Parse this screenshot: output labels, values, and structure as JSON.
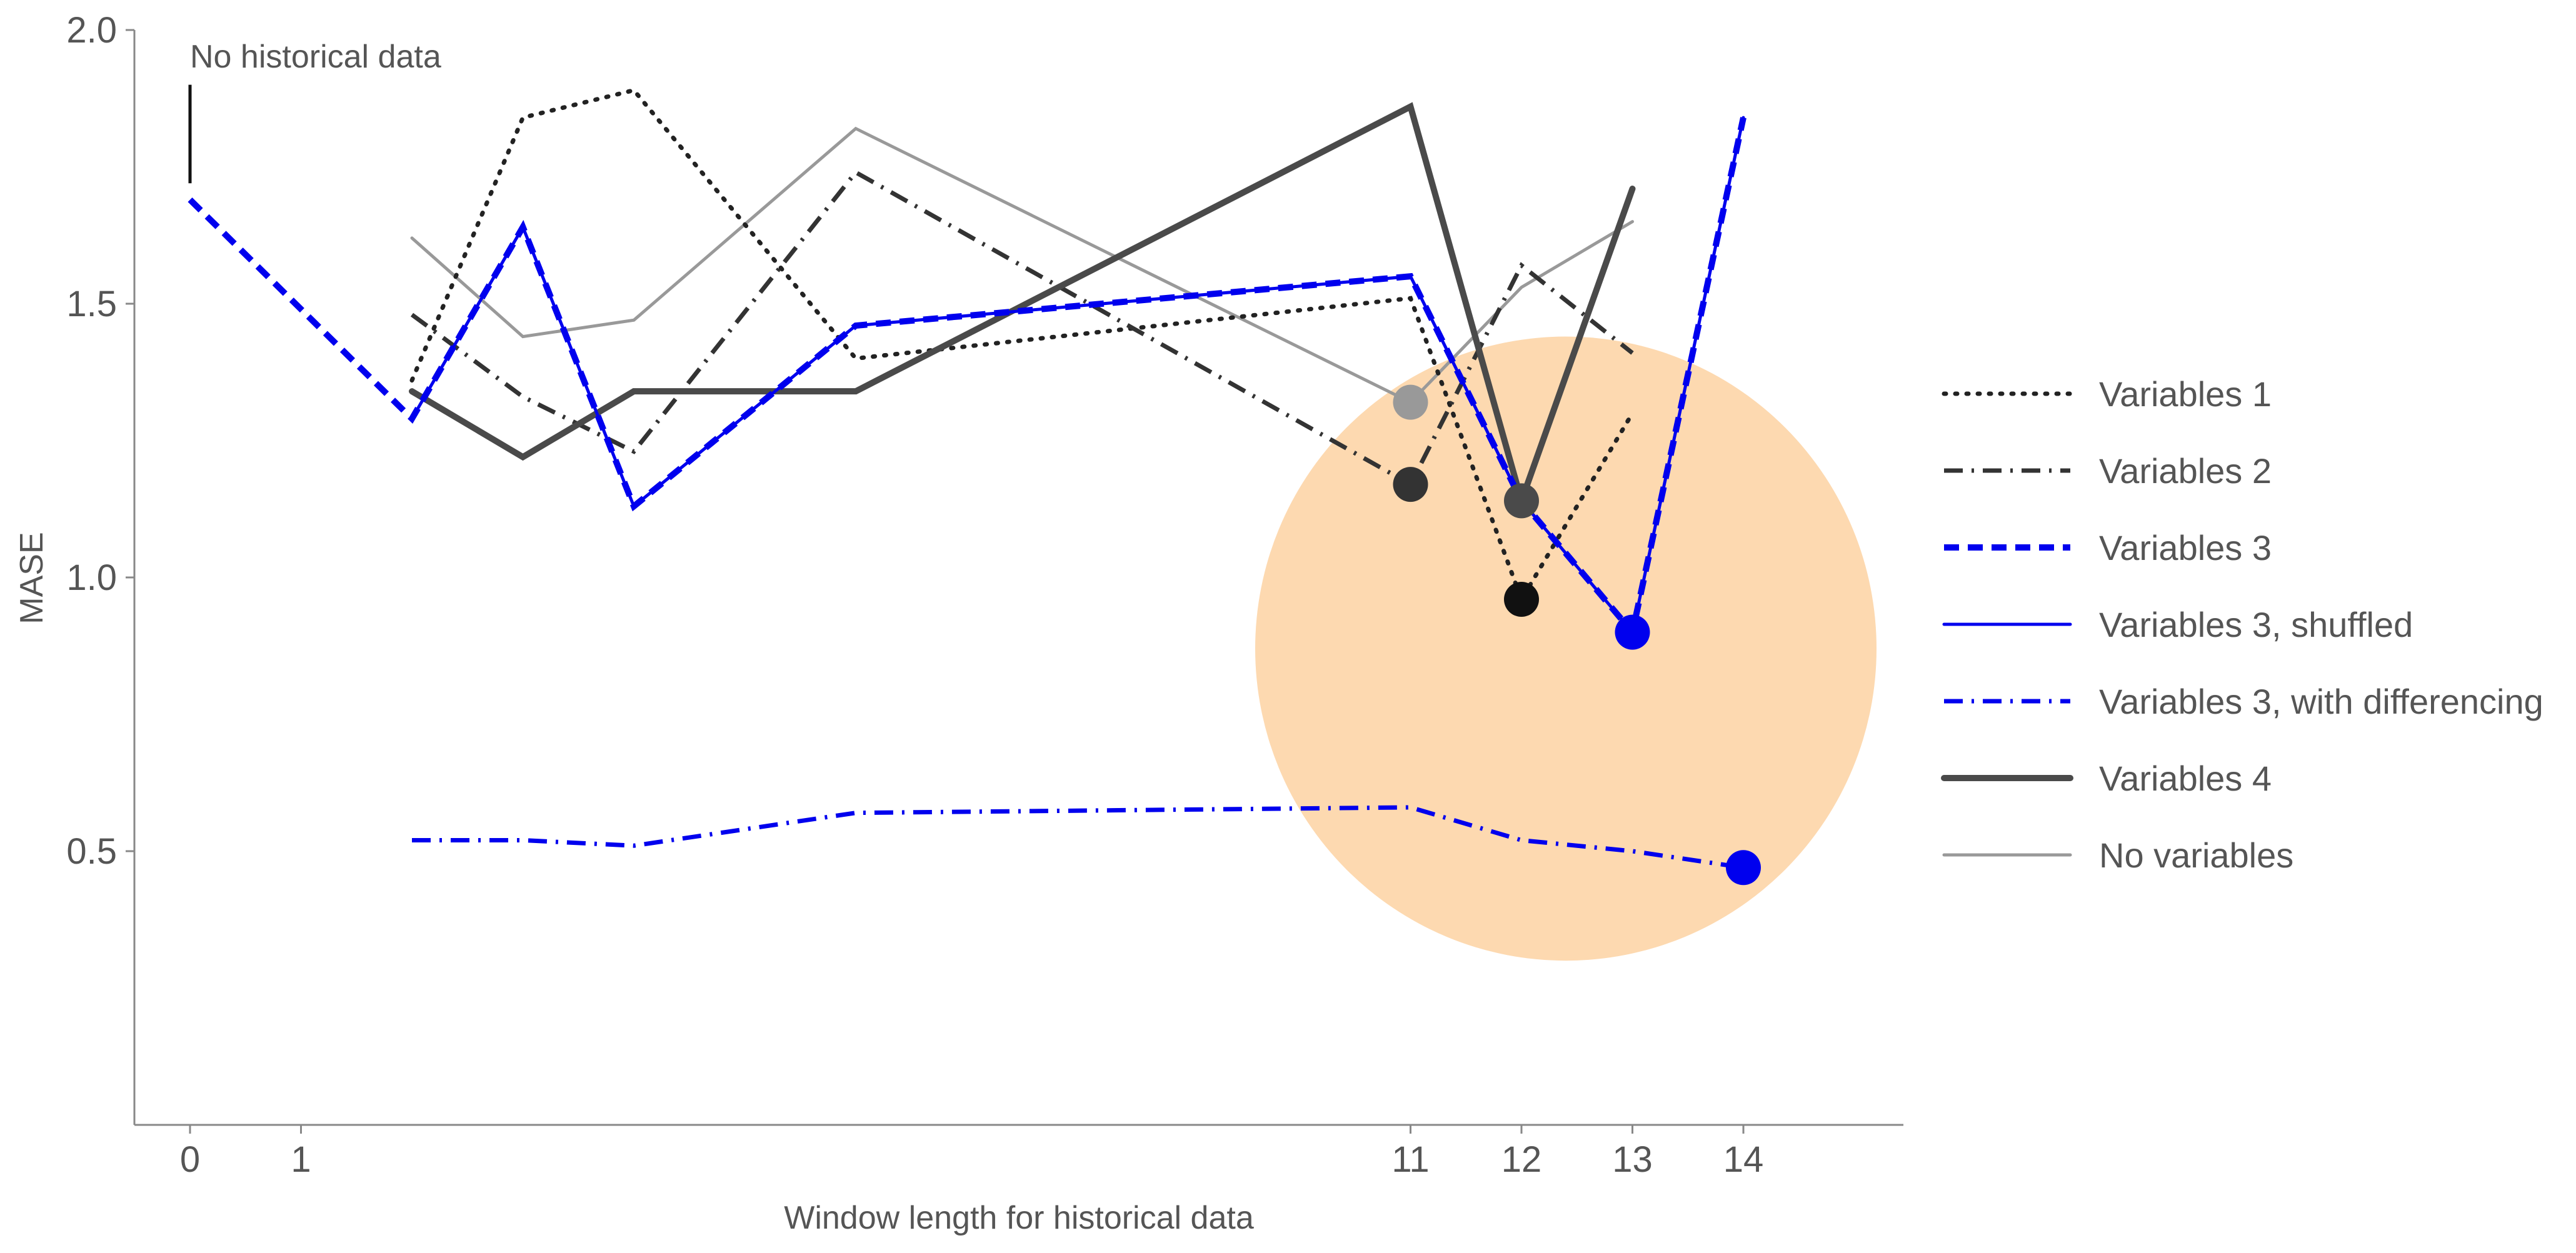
{
  "chart_data": {
    "type": "line",
    "xlabel": "Window length for historical data",
    "ylabel": "MASE",
    "xlim": [
      -0.5,
      15.5
    ],
    "ylim": [
      0,
      2.0
    ],
    "x_ticks": [
      0,
      1,
      11,
      12,
      13,
      14
    ],
    "y_ticks": [
      0.5,
      1.0,
      1.5,
      2.0
    ],
    "y_tick_labels": [
      "0.5",
      "1.0",
      "1.5",
      "2.0"
    ],
    "grid": false,
    "legend_position": "right",
    "annotation": {
      "text": "No historical data",
      "x": 0,
      "y_from": 1.72,
      "y_to": 1.9
    },
    "highlight": {
      "shape": "circle",
      "color": "#fdd9b0",
      "cx": 12.4,
      "cy": 0.87,
      "rx": 2.8,
      "ry": 0.57
    },
    "series": [
      {
        "name": "Variables 1",
        "color": "#222222",
        "style": "dotted",
        "x": [
          2,
          3,
          4,
          6,
          11,
          12,
          13
        ],
        "y": [
          1.36,
          1.84,
          1.89,
          1.4,
          1.51,
          0.96,
          1.3
        ],
        "marker": {
          "x": 12,
          "y": 0.96,
          "color": "#111111"
        }
      },
      {
        "name": "Variables 2",
        "color": "#333333",
        "style": "dashdot",
        "x": [
          2,
          3,
          4,
          6,
          11,
          12,
          13
        ],
        "y": [
          1.48,
          1.33,
          1.23,
          1.74,
          1.17,
          1.57,
          1.41
        ],
        "marker": {
          "x": 11,
          "y": 1.17,
          "color": "#333333"
        }
      },
      {
        "name": "Variables 3",
        "color": "#0000ee",
        "style": "dashed",
        "x": [
          0,
          2,
          3,
          4,
          6,
          11,
          12,
          13,
          14
        ],
        "y": [
          1.69,
          1.29,
          1.64,
          1.13,
          1.46,
          1.55,
          1.14,
          0.9,
          1.84
        ],
        "marker": {
          "x": 13,
          "y": 0.9,
          "color": "#0000ee"
        }
      },
      {
        "name": "Variables 3, shuffled",
        "color": "#0000ee",
        "style": "solid-thin",
        "x": [
          2,
          3,
          4,
          6,
          11,
          12,
          13,
          14
        ],
        "y": [
          1.29,
          1.64,
          1.13,
          1.46,
          1.55,
          1.14,
          0.9,
          1.84
        ]
      },
      {
        "name": "Variables 3, with differencing",
        "color": "#0000ee",
        "style": "dashdot",
        "x": [
          2,
          3,
          4,
          6,
          11,
          12,
          13,
          14
        ],
        "y": [
          0.52,
          0.52,
          0.51,
          0.57,
          0.58,
          0.52,
          0.5,
          0.47
        ],
        "marker": {
          "x": 14,
          "y": 0.47,
          "color": "#0000ee"
        }
      },
      {
        "name": "Variables 4",
        "color": "#4a4a4a",
        "style": "solid-thick",
        "x": [
          2,
          3,
          4,
          6,
          11,
          12,
          13
        ],
        "y": [
          1.34,
          1.22,
          1.34,
          1.34,
          1.86,
          1.14,
          1.71
        ],
        "marker": {
          "x": 12,
          "y": 1.14,
          "color": "#4a4a4a"
        }
      },
      {
        "name": "No variables",
        "color": "#999999",
        "style": "solid-thin",
        "x": [
          2,
          3,
          4,
          6,
          11,
          12,
          13
        ],
        "y": [
          1.62,
          1.44,
          1.47,
          1.82,
          1.32,
          1.53,
          1.65
        ],
        "marker": {
          "x": 11,
          "y": 1.32,
          "color": "#999999"
        }
      }
    ]
  }
}
